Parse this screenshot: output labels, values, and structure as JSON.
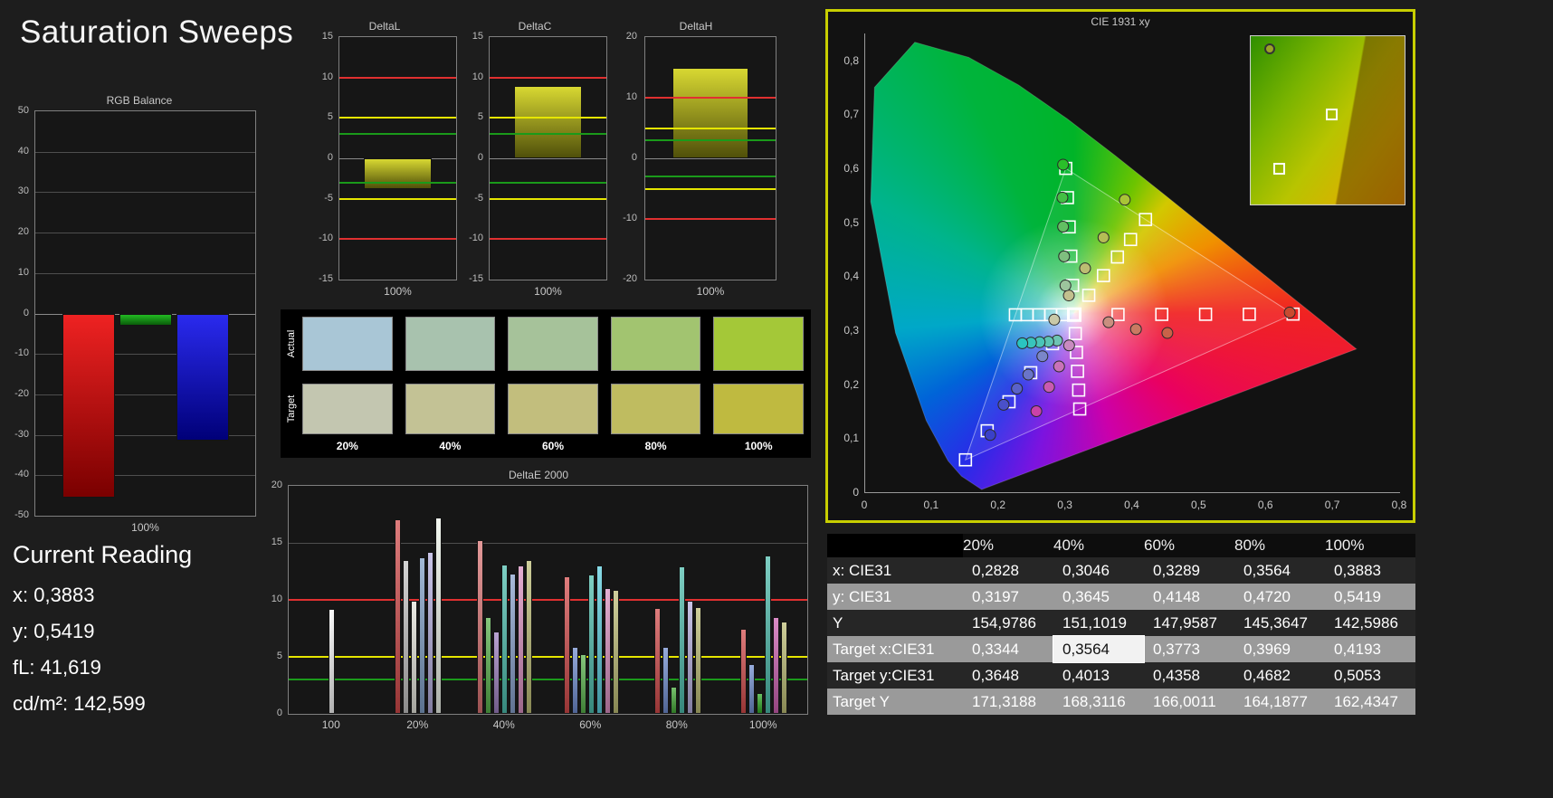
{
  "app": {
    "title": "Saturation Sweeps"
  },
  "colors": {
    "background": "#1d1d1d",
    "panel_border": "#808080",
    "accent_border": "#c8ce00",
    "ref_red": "#e03030",
    "ref_yellow": "#e6e600",
    "ref_green": "#1a9a1a"
  },
  "current_reading": {
    "heading": "Current Reading",
    "items": [
      {
        "label": "x:",
        "value": "0,3883"
      },
      {
        "label": "y:",
        "value": "0,5419"
      },
      {
        "label": "fL:",
        "value": "41,619"
      },
      {
        "label": "cd/m²:",
        "value": "142,599"
      }
    ]
  },
  "swatches": {
    "row_labels": [
      "Actual",
      "Target"
    ],
    "column_labels": [
      "20%",
      "40%",
      "60%",
      "80%",
      "100%"
    ],
    "actual_colors": [
      "#a9c6d6",
      "#a8c2ae",
      "#a6c29a",
      "#a2c470",
      "#a4c838"
    ],
    "target_colors": [
      "#c3c6b0",
      "#c3c295",
      "#c2be7d",
      "#bfbc60",
      "#bfba40"
    ]
  },
  "table": {
    "header": [
      "20%",
      "40%",
      "60%",
      "80%",
      "100%"
    ],
    "rows": [
      {
        "label": "x: CIE31",
        "values": [
          "0,2828",
          "0,3046",
          "0,3289",
          "0,3564",
          "0,3883"
        ]
      },
      {
        "label": "y: CIE31",
        "values": [
          "0,3197",
          "0,3645",
          "0,4148",
          "0,4720",
          "0,5419"
        ]
      },
      {
        "label": "Y",
        "values": [
          "154,9786",
          "151,1019",
          "147,9587",
          "145,3647",
          "142,5986"
        ]
      },
      {
        "label": "Target x:CIE31",
        "values": [
          "0,3344",
          "0,3564",
          "0,3773",
          "0,3969",
          "0,4193"
        ]
      },
      {
        "label": "Target y:CIE31",
        "values": [
          "0,3648",
          "0,4013",
          "0,4358",
          "0,4682",
          "0,5053"
        ]
      },
      {
        "label": "Target Y",
        "values": [
          "171,3188",
          "168,3116",
          "166,0011",
          "164,1877",
          "162,4347"
        ]
      }
    ],
    "highlight": {
      "row": 3,
      "col": 1
    }
  },
  "chart_data": [
    {
      "id": "rgb-balance",
      "type": "bar",
      "title": "RGB Balance",
      "xlabel": "100%",
      "ylim": [
        -50,
        50
      ],
      "yticks": [
        50,
        40,
        30,
        20,
        10,
        0,
        -10,
        -20,
        -30,
        -40,
        -50
      ],
      "bars": [
        {
          "name": "red",
          "value": -45.5,
          "top": "#ee2222",
          "bottom": "#7a0000"
        },
        {
          "name": "green",
          "value": -3.0,
          "top": "#22bb22",
          "bottom": "#0a5c0a"
        },
        {
          "name": "blue",
          "value": -31.5,
          "top": "#2a2aee",
          "bottom": "#000078"
        }
      ]
    },
    {
      "id": "delta-l",
      "type": "bar",
      "title": "DeltaL",
      "xlabel": "100%",
      "ylim": [
        -15,
        15
      ],
      "yticks": [
        15,
        10,
        5,
        0,
        -5,
        -10,
        -15
      ],
      "ref_lines": [
        {
          "y": 10,
          "color": "red"
        },
        {
          "y": 5,
          "color": "yellow"
        },
        {
          "y": 3,
          "color": "green"
        },
        {
          "y": -3,
          "color": "green"
        },
        {
          "y": -5,
          "color": "yellow"
        },
        {
          "y": -10,
          "color": "red"
        }
      ],
      "value": -3.8
    },
    {
      "id": "delta-c",
      "type": "bar",
      "title": "DeltaC",
      "xlabel": "100%",
      "ylim": [
        -15,
        15
      ],
      "yticks": [
        15,
        10,
        5,
        0,
        -5,
        -10,
        -15
      ],
      "ref_lines": [
        {
          "y": 10,
          "color": "red"
        },
        {
          "y": 5,
          "color": "yellow"
        },
        {
          "y": 3,
          "color": "green"
        },
        {
          "y": -3,
          "color": "green"
        },
        {
          "y": -5,
          "color": "yellow"
        },
        {
          "y": -10,
          "color": "red"
        }
      ],
      "value": 9.0
    },
    {
      "id": "delta-h",
      "type": "bar",
      "title": "DeltaH",
      "xlabel": "100%",
      "ylim": [
        -20,
        20
      ],
      "yticks": [
        20,
        10,
        0,
        -10,
        -20
      ],
      "ref_lines": [
        {
          "y": 10,
          "color": "red"
        },
        {
          "y": 5,
          "color": "yellow"
        },
        {
          "y": 3,
          "color": "green"
        },
        {
          "y": -3,
          "color": "green"
        },
        {
          "y": -5,
          "color": "yellow"
        },
        {
          "y": -10,
          "color": "red"
        }
      ],
      "value": 15.0
    },
    {
      "id": "delta-e-2000",
      "type": "grouped-bar",
      "title": "DeltaE 2000",
      "ylim": [
        0,
        20
      ],
      "yticks": [
        20,
        15,
        10,
        5,
        0
      ],
      "ref_lines": [
        {
          "y": 10,
          "color": "red"
        },
        {
          "y": 5,
          "color": "yellow"
        },
        {
          "y": 3,
          "color": "green"
        }
      ],
      "groups": [
        {
          "label": "100",
          "bars": [
            {
              "v": 9.2,
              "c": "#f5f5f5"
            }
          ]
        },
        {
          "label": "20%",
          "bars": [
            {
              "v": 17.1,
              "c": "#d24a4a"
            },
            {
              "v": 13.5,
              "c": "#c2c2c2"
            },
            {
              "v": 9.9,
              "c": "#e3e3da"
            },
            {
              "v": 13.7,
              "c": "#7e9ec6"
            },
            {
              "v": 14.2,
              "c": "#b4aede"
            },
            {
              "v": 17.2,
              "c": "#eef4ea"
            }
          ]
        },
        {
          "label": "40%",
          "bars": [
            {
              "v": 15.2,
              "c": "#d97272"
            },
            {
              "v": 8.5,
              "c": "#57b04a"
            },
            {
              "v": 7.2,
              "c": "#9d7fc0"
            },
            {
              "v": 13.1,
              "c": "#4cbcac"
            },
            {
              "v": 12.3,
              "c": "#87a0cc"
            },
            {
              "v": 13.0,
              "c": "#d98fc0"
            },
            {
              "v": 13.5,
              "c": "#bcbc74"
            }
          ]
        },
        {
          "label": "60%",
          "bars": [
            {
              "v": 12.1,
              "c": "#d24a4a"
            },
            {
              "v": 5.9,
              "c": "#6e8cce"
            },
            {
              "v": 5.2,
              "c": "#57b04a"
            },
            {
              "v": 12.2,
              "c": "#4cbcac"
            },
            {
              "v": 13.0,
              "c": "#59ccdd"
            },
            {
              "v": 11.0,
              "c": "#d98fc0"
            },
            {
              "v": 10.9,
              "c": "#bcbc74"
            }
          ]
        },
        {
          "label": "80%",
          "bars": [
            {
              "v": 9.3,
              "c": "#d24a4a"
            },
            {
              "v": 5.9,
              "c": "#6e8cce"
            },
            {
              "v": 2.4,
              "c": "#43a836"
            },
            {
              "v": 12.9,
              "c": "#4cbcac"
            },
            {
              "v": 9.9,
              "c": "#b4aede"
            },
            {
              "v": 9.4,
              "c": "#bcbc74"
            }
          ]
        },
        {
          "label": "100%",
          "bars": [
            {
              "v": 7.5,
              "c": "#d24a4a"
            },
            {
              "v": 4.4,
              "c": "#6e8cce"
            },
            {
              "v": 1.8,
              "c": "#2ea825"
            },
            {
              "v": 13.9,
              "c": "#4cbcac"
            },
            {
              "v": 8.5,
              "c": "#cc5fb0"
            },
            {
              "v": 8.1,
              "c": "#bcbc74"
            }
          ]
        }
      ]
    },
    {
      "id": "cie-1931",
      "type": "scatter",
      "title": "CIE 1931 xy",
      "xlim": [
        0,
        0.8
      ],
      "ylim": [
        0,
        0.85
      ],
      "xtick_labels": [
        "0",
        "0,1",
        "0,2",
        "0,3",
        "0,4",
        "0,5",
        "0,6",
        "0,7",
        "0,8"
      ],
      "ytick_labels": [
        "0",
        "0,1",
        "0,2",
        "0,3",
        "0,4",
        "0,5",
        "0,6",
        "0,7",
        "0,8"
      ],
      "gamut_triangle": [
        [
          0.64,
          0.33
        ],
        [
          0.3,
          0.6
        ],
        [
          0.15,
          0.06
        ]
      ],
      "white_point": [
        0.3127,
        0.329
      ],
      "spectral_locus": [
        [
          0.1741,
          0.005
        ],
        [
          0.144,
          0.0297
        ],
        [
          0.1241,
          0.0578
        ],
        [
          0.0913,
          0.1327
        ],
        [
          0.0454,
          0.295
        ],
        [
          0.0082,
          0.5384
        ],
        [
          0.0139,
          0.7502
        ],
        [
          0.0743,
          0.8338
        ],
        [
          0.1547,
          0.8059
        ],
        [
          0.2296,
          0.7543
        ],
        [
          0.3016,
          0.6923
        ],
        [
          0.3731,
          0.6245
        ],
        [
          0.4441,
          0.5547
        ],
        [
          0.5125,
          0.4866
        ],
        [
          0.5752,
          0.4242
        ],
        [
          0.627,
          0.3725
        ],
        [
          0.6658,
          0.334
        ],
        [
          0.6915,
          0.3083
        ],
        [
          0.7079,
          0.292
        ],
        [
          0.7347,
          0.2653
        ]
      ],
      "targets": [
        [
          0.3127,
          0.329
        ],
        [
          0.3782,
          0.3292
        ],
        [
          0.4436,
          0.3294
        ],
        [
          0.5091,
          0.3296
        ],
        [
          0.5745,
          0.3298
        ],
        [
          0.64,
          0.33
        ],
        [
          0.3102,
          0.3832
        ],
        [
          0.3076,
          0.4374
        ],
        [
          0.3051,
          0.4916
        ],
        [
          0.3025,
          0.5458
        ],
        [
          0.3,
          0.6
        ],
        [
          0.2802,
          0.2752
        ],
        [
          0.2476,
          0.2214
        ],
        [
          0.2151,
          0.1676
        ],
        [
          0.1825,
          0.1138
        ],
        [
          0.15,
          0.06
        ],
        [
          0.2951,
          0.3289
        ],
        [
          0.2775,
          0.3289
        ],
        [
          0.2599,
          0.3288
        ],
        [
          0.2422,
          0.3288
        ],
        [
          0.2246,
          0.3287
        ],
        [
          0.3143,
          0.294
        ],
        [
          0.316,
          0.2591
        ],
        [
          0.3176,
          0.2241
        ],
        [
          0.3193,
          0.1892
        ],
        [
          0.3209,
          0.1542
        ],
        [
          0.3344,
          0.3648
        ],
        [
          0.3564,
          0.4013
        ],
        [
          0.3773,
          0.4358
        ],
        [
          0.3969,
          0.4682
        ],
        [
          0.4193,
          0.5053
        ]
      ],
      "measured": [
        {
          "x": 0.2828,
          "y": 0.3197,
          "c": "#c9c9a8"
        },
        {
          "x": 0.3046,
          "y": 0.3645,
          "c": "#c2c08e"
        },
        {
          "x": 0.3289,
          "y": 0.4148,
          "c": "#bcbd72"
        },
        {
          "x": 0.3564,
          "y": 0.472,
          "c": "#b5bd55"
        },
        {
          "x": 0.3883,
          "y": 0.5419,
          "c": "#a9c437"
        },
        {
          "x": 0.2995,
          "y": 0.383,
          "c": "#9cc49c"
        },
        {
          "x": 0.2975,
          "y": 0.437,
          "c": "#7fbf7f"
        },
        {
          "x": 0.296,
          "y": 0.492,
          "c": "#62bf62"
        },
        {
          "x": 0.295,
          "y": 0.546,
          "c": "#44bf44"
        },
        {
          "x": 0.296,
          "y": 0.607,
          "c": "#2abf2a"
        },
        {
          "x": 0.364,
          "y": 0.315,
          "c": "#c98f7f"
        },
        {
          "x": 0.405,
          "y": 0.302,
          "c": "#c97a62"
        },
        {
          "x": 0.452,
          "y": 0.295,
          "c": "#c96248"
        },
        {
          "x": 0.635,
          "y": 0.333,
          "c": "#c94a30"
        },
        {
          "x": 0.287,
          "y": 0.281,
          "c": "#6ec4b4"
        },
        {
          "x": 0.274,
          "y": 0.279,
          "c": "#5cc4b4"
        },
        {
          "x": 0.261,
          "y": 0.278,
          "c": "#4ac4b8"
        },
        {
          "x": 0.248,
          "y": 0.277,
          "c": "#38c4bc"
        },
        {
          "x": 0.235,
          "y": 0.276,
          "c": "#2ac4c0"
        },
        {
          "x": 0.265,
          "y": 0.252,
          "c": "#7a86c9"
        },
        {
          "x": 0.244,
          "y": 0.218,
          "c": "#6a74c9"
        },
        {
          "x": 0.227,
          "y": 0.192,
          "c": "#5a62c9"
        },
        {
          "x": 0.207,
          "y": 0.162,
          "c": "#4a50c9"
        },
        {
          "x": 0.187,
          "y": 0.106,
          "c": "#3a40c9"
        },
        {
          "x": 0.305,
          "y": 0.272,
          "c": "#c98ac0"
        },
        {
          "x": 0.29,
          "y": 0.233,
          "c": "#c972b8"
        },
        {
          "x": 0.275,
          "y": 0.195,
          "c": "#c95ab0"
        },
        {
          "x": 0.256,
          "y": 0.15,
          "c": "#c942a8"
        }
      ],
      "inset_markers": [
        {
          "t": "circle",
          "x": 13,
          "y": 8,
          "c": "#9aa428"
        },
        {
          "t": "square",
          "x": 53,
          "y": 47
        },
        {
          "t": "square",
          "x": 19,
          "y": 79
        }
      ]
    }
  ]
}
